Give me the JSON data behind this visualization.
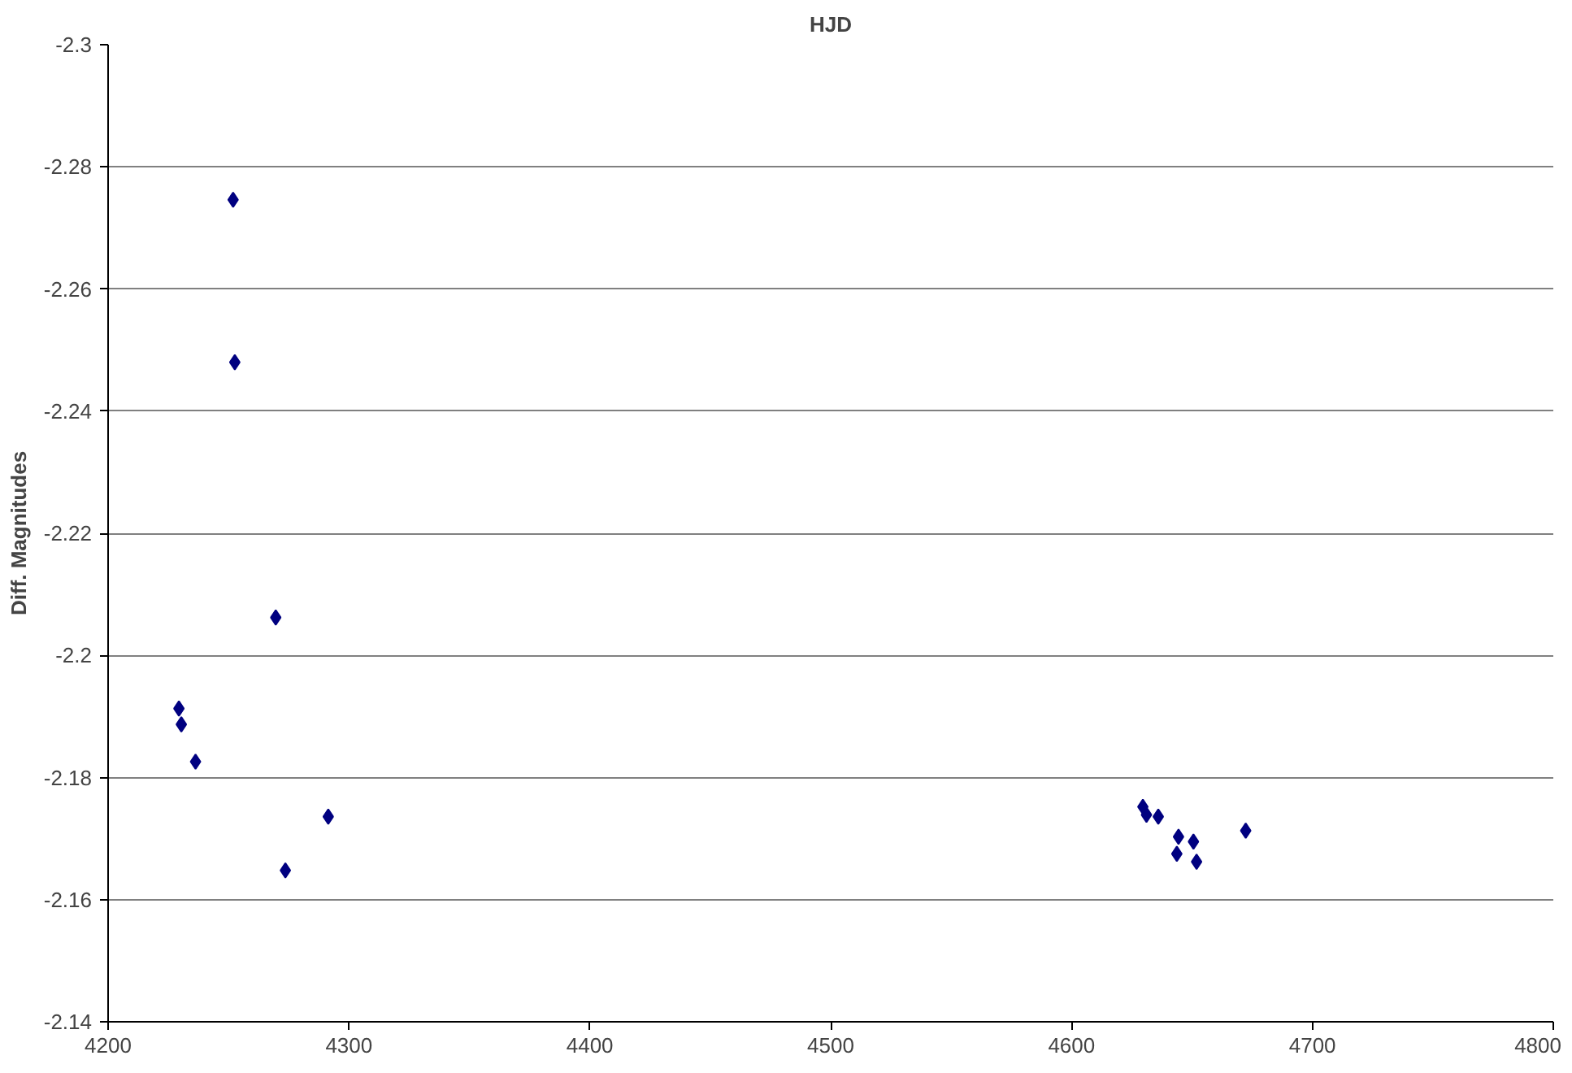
{
  "chart_data": {
    "type": "scatter",
    "title": "HJD",
    "ylabel": "Diff. Magnitudes",
    "x": [
      4229.4,
      4230.4,
      4236.3,
      4251.9,
      4252.6,
      4269.6,
      4273.6,
      4291.4,
      4629.6,
      4631.1,
      4636.0,
      4643.7,
      4644.4,
      4650.6,
      4651.9,
      4672.3
    ],
    "series": [
      {
        "color": "#000080",
        "values": [
          -2.1913,
          -2.1887,
          -2.1826,
          -2.2746,
          -2.248,
          -2.2062,
          -2.1648,
          -2.1736,
          -2.1752,
          -2.1739,
          -2.1736,
          -2.1675,
          -2.1703,
          -2.1695,
          -2.1662,
          -2.1713
        ]
      }
    ],
    "xlim": [
      4200,
      4800
    ],
    "xticks": [
      4200,
      4300,
      4400,
      4500,
      4600,
      4700,
      4800
    ],
    "ylim": [
      -2.14,
      -2.3
    ],
    "yticks": [
      -2.3,
      -2.28,
      -2.26,
      -2.24,
      -2.22,
      -2.2,
      -2.18,
      -2.16,
      -2.14
    ],
    "grid": "y",
    "marker": "diamond"
  }
}
